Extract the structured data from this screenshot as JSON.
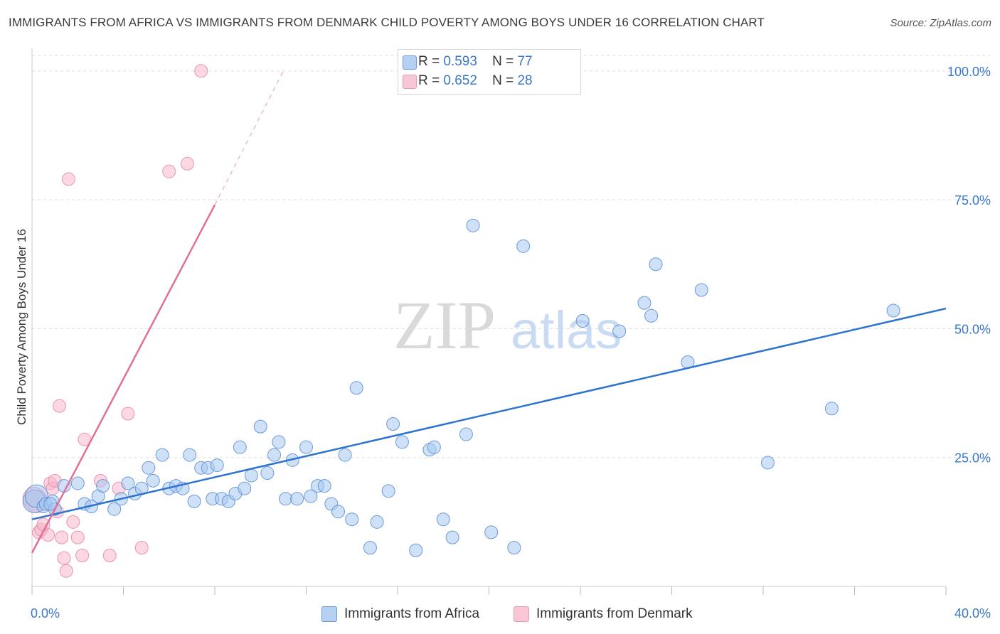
{
  "title": "IMMIGRANTS FROM AFRICA VS IMMIGRANTS FROM DENMARK CHILD POVERTY AMONG BOYS UNDER 16 CORRELATION CHART",
  "source": "Source: ZipAtlas.com",
  "watermark": {
    "zip": "ZIP",
    "atlas": "atlas"
  },
  "colors": {
    "africa_fill": "#a8c8f0",
    "africa_stroke": "#5b8fd6",
    "africa_line": "#2f73d0",
    "denmark_fill": "#f7b8cb",
    "denmark_stroke": "#e88aa6",
    "denmark_line": "#e0709a",
    "tick_label": "#3a78c9",
    "grid": "#dddddd"
  },
  "stats": {
    "africa": {
      "r_label": "R =",
      "r_value": "0.593",
      "n_label": "N =",
      "n_value": "77"
    },
    "denmark": {
      "r_label": "R =",
      "r_value": "0.652",
      "n_label": "N =",
      "n_value": "28"
    }
  },
  "legend": {
    "africa": "Immigrants from Africa",
    "denmark": "Immigrants from Denmark"
  },
  "chart_data": {
    "type": "scatter",
    "title": "IMMIGRANTS FROM AFRICA VS IMMIGRANTS FROM DENMARK CHILD POVERTY AMONG BOYS UNDER 16 CORRELATION CHART",
    "xlabel": "",
    "ylabel": "Child Poverty Among Boys Under 16",
    "xlim": [
      0,
      40
    ],
    "ylim": [
      0,
      103
    ],
    "x_tick_labels": [
      "0.0%",
      "40.0%"
    ],
    "y_ticks": [
      25,
      50,
      75,
      100
    ],
    "y_tick_labels": [
      "25.0%",
      "50.0%",
      "75.0%",
      "100.0%"
    ],
    "grid": true,
    "legend_position": "bottom",
    "series": [
      {
        "name": "Immigrants from Africa",
        "points": [
          [
            0.1,
            16.5
          ],
          [
            0.2,
            17.5
          ],
          [
            0.5,
            15.5
          ],
          [
            0.6,
            16.0
          ],
          [
            0.9,
            16.5
          ],
          [
            1.0,
            15.0
          ],
          [
            1.4,
            19.5
          ],
          [
            2.0,
            20.0
          ],
          [
            2.3,
            16.0
          ],
          [
            2.6,
            15.5
          ],
          [
            2.9,
            17.5
          ],
          [
            3.1,
            19.5
          ],
          [
            3.6,
            15.0
          ],
          [
            3.9,
            17.0
          ],
          [
            4.2,
            20.0
          ],
          [
            4.5,
            18.0
          ],
          [
            4.8,
            19.0
          ],
          [
            5.1,
            23.0
          ],
          [
            5.3,
            20.5
          ],
          [
            5.7,
            25.5
          ],
          [
            6.0,
            19.0
          ],
          [
            6.3,
            19.5
          ],
          [
            6.6,
            19.0
          ],
          [
            6.9,
            25.5
          ],
          [
            7.1,
            16.5
          ],
          [
            7.4,
            23.0
          ],
          [
            7.7,
            23.0
          ],
          [
            7.9,
            17.0
          ],
          [
            8.1,
            23.5
          ],
          [
            8.3,
            17.0
          ],
          [
            8.6,
            16.5
          ],
          [
            8.9,
            18.0
          ],
          [
            9.1,
            27.0
          ],
          [
            9.3,
            19.0
          ],
          [
            9.6,
            21.5
          ],
          [
            10.0,
            31.0
          ],
          [
            10.3,
            22.0
          ],
          [
            10.6,
            25.5
          ],
          [
            10.8,
            28.0
          ],
          [
            11.1,
            17.0
          ],
          [
            11.4,
            24.5
          ],
          [
            11.6,
            17.0
          ],
          [
            12.0,
            27.0
          ],
          [
            12.2,
            17.5
          ],
          [
            12.5,
            19.5
          ],
          [
            12.8,
            19.5
          ],
          [
            13.1,
            16.0
          ],
          [
            13.4,
            14.5
          ],
          [
            13.7,
            25.5
          ],
          [
            14.0,
            13.0
          ],
          [
            14.2,
            38.5
          ],
          [
            14.8,
            7.5
          ],
          [
            15.1,
            12.5
          ],
          [
            15.6,
            18.5
          ],
          [
            15.8,
            31.5
          ],
          [
            16.2,
            28.0
          ],
          [
            16.8,
            7.0
          ],
          [
            17.4,
            26.5
          ],
          [
            17.6,
            27.0
          ],
          [
            18.0,
            13.0
          ],
          [
            18.4,
            9.5
          ],
          [
            19.0,
            29.5
          ],
          [
            19.3,
            70.0
          ],
          [
            20.1,
            10.5
          ],
          [
            21.1,
            7.5
          ],
          [
            21.5,
            66.0
          ],
          [
            24.1,
            51.5
          ],
          [
            25.7,
            49.5
          ],
          [
            26.8,
            55.0
          ],
          [
            27.1,
            52.5
          ],
          [
            27.3,
            62.5
          ],
          [
            28.7,
            43.5
          ],
          [
            29.3,
            57.5
          ],
          [
            32.2,
            24.0
          ],
          [
            35.0,
            34.5
          ],
          [
            37.7,
            53.5
          ],
          [
            0.8,
            16.0
          ]
        ],
        "trend": {
          "x": [
            0.0,
            40.0
          ],
          "y": [
            13.0,
            53.9
          ]
        }
      },
      {
        "name": "Immigrants from Denmark",
        "points": [
          [
            0.1,
            17.0
          ],
          [
            0.2,
            16.5
          ],
          [
            0.3,
            10.5
          ],
          [
            0.4,
            11.0
          ],
          [
            0.6,
            16.0
          ],
          [
            0.7,
            10.0
          ],
          [
            0.8,
            20.0
          ],
          [
            0.9,
            19.0
          ],
          [
            1.0,
            20.5
          ],
          [
            1.1,
            14.5
          ],
          [
            1.2,
            35.0
          ],
          [
            1.3,
            9.5
          ],
          [
            1.4,
            5.5
          ],
          [
            1.5,
            3.0
          ],
          [
            1.6,
            79.0
          ],
          [
            1.8,
            12.5
          ],
          [
            2.0,
            9.5
          ],
          [
            2.2,
            6.0
          ],
          [
            2.3,
            28.5
          ],
          [
            3.0,
            20.5
          ],
          [
            3.4,
            6.0
          ],
          [
            3.8,
            19.0
          ],
          [
            4.2,
            33.5
          ],
          [
            4.8,
            7.5
          ],
          [
            6.0,
            80.5
          ],
          [
            6.8,
            82.0
          ],
          [
            7.4,
            100.0
          ],
          [
            0.5,
            12.0
          ]
        ],
        "trend": {
          "x": [
            0.0,
            8.0
          ],
          "y": [
            6.5,
            74.0
          ]
        },
        "trend_extension": {
          "x": [
            8.0,
            11.0
          ],
          "y": [
            74.0,
            100.0
          ]
        }
      }
    ]
  }
}
